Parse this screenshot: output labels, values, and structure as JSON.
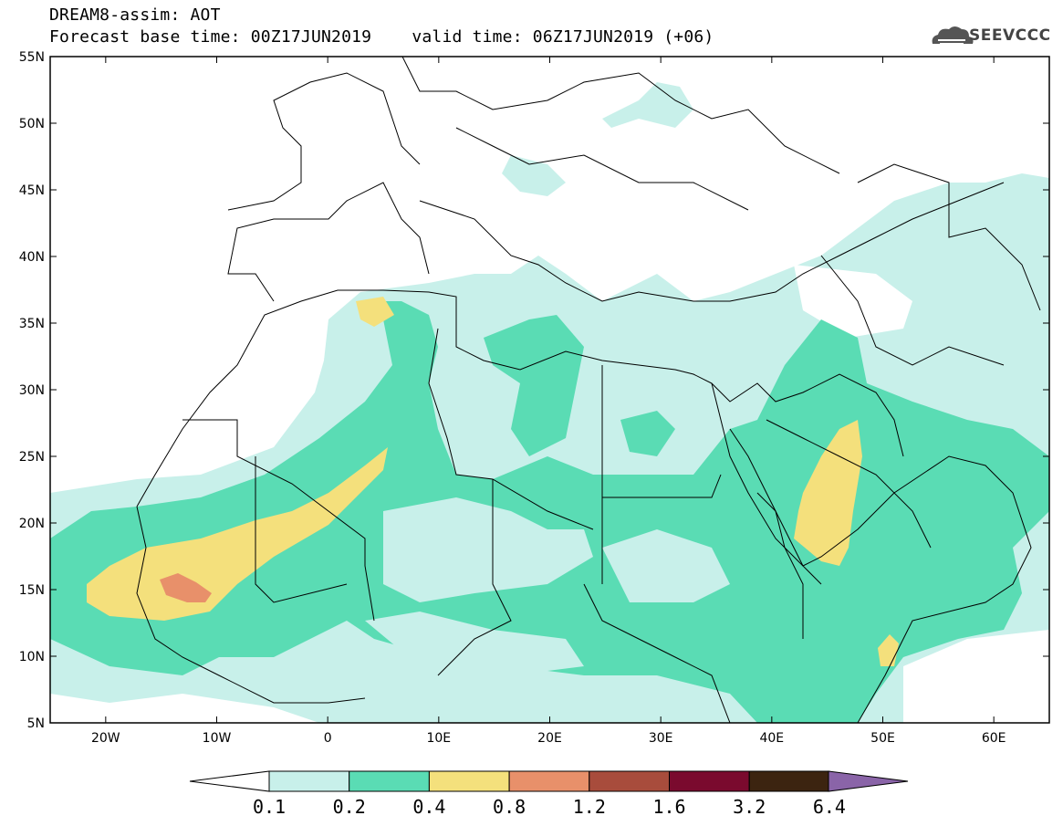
{
  "header": {
    "title": "DREAM8-assim: AOT",
    "base_time_label": "Forecast base time: 00Z17JUN2019",
    "valid_time_label": "valid time: 06Z17JUN2019 (+06)"
  },
  "logo": {
    "text": "SEEVCCC",
    "icon": "cloud-icon"
  },
  "axes": {
    "lat_labels": [
      "55N",
      "50N",
      "45N",
      "40N",
      "35N",
      "30N",
      "25N",
      "20N",
      "15N",
      "10N",
      "5N"
    ],
    "lon_labels": [
      "20W",
      "10W",
      "0",
      "10E",
      "20E",
      "30E",
      "40E",
      "50E",
      "60E"
    ],
    "lat_range": [
      5,
      55
    ],
    "lon_range": [
      -25,
      65
    ]
  },
  "colorbar": {
    "labels": [
      "0.1",
      "0.2",
      "0.4",
      "0.8",
      "1.2",
      "1.6",
      "3.2",
      "6.4"
    ],
    "colors": [
      "#c8f0ea",
      "#5adcb4",
      "#f4e07c",
      "#e8906a",
      "#a84c3c",
      "#7a0a2e",
      "#3c2410",
      "#8a64a8"
    ]
  },
  "colors": {
    "level1": "#c8f0ea",
    "level2": "#5adcb4",
    "level3": "#f4e07c",
    "level4": "#e8906a",
    "coastline": "#000000"
  }
}
